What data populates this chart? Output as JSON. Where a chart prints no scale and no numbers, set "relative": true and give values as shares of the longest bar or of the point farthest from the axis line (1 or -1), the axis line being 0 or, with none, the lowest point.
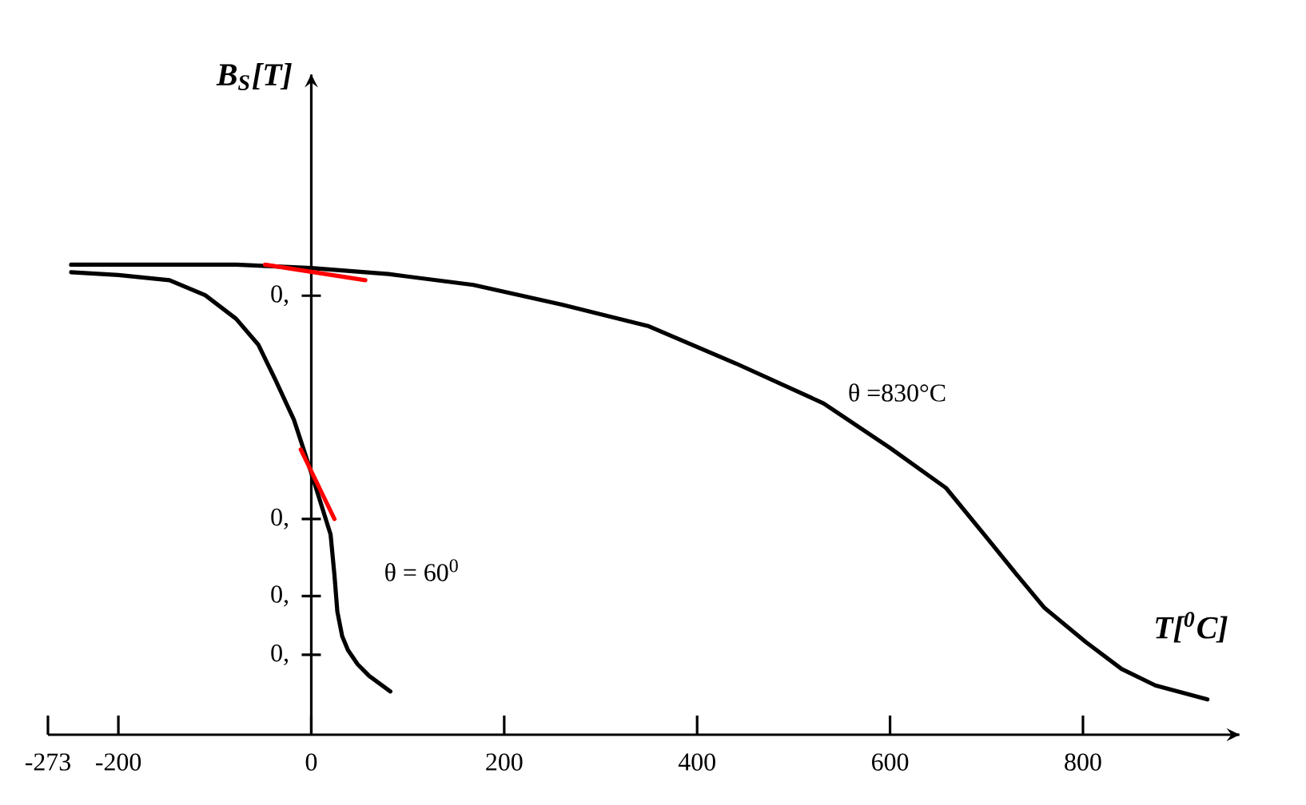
{
  "chart_data": {
    "type": "line",
    "relative": true,
    "xlabel": "T[$^{0}$C]",
    "xlim": [
      -273,
      960
    ],
    "xticks": [
      -273,
      -200,
      0,
      200,
      400,
      600,
      800
    ],
    "series": [
      {
        "color": "#000000",
        "x": [
          -249,
          -160,
          -78,
          0,
          80,
          168,
          260,
          350,
          440,
          531,
          600,
          658,
          700,
          730,
          760,
          803,
          840,
          875,
          929
        ],
        "values": [
          1.0,
          1.0,
          1.0,
          0.993,
          0.98,
          0.957,
          0.915,
          0.869,
          0.79,
          0.705,
          0.61,
          0.525,
          0.42,
          0.344,
          0.27,
          0.197,
          0.14,
          0.105,
          0.075
        ]
      },
      {
        "color": "#000000",
        "x": [
          -249,
          -200,
          -147,
          -110,
          -78,
          -55,
          -37,
          -18,
          0,
          20,
          24,
          27,
          32,
          38,
          48,
          60,
          82
        ],
        "values": [
          0.984,
          0.978,
          0.967,
          0.935,
          0.885,
          0.83,
          0.754,
          0.67,
          0.557,
          0.426,
          0.34,
          0.262,
          0.21,
          0.18,
          0.15,
          0.125,
          0.092
        ]
      },
      {
        "color": "#ff0000",
        "x": [
          -48,
          56
        ],
        "values": [
          1.0,
          0.967
        ]
      },
      {
        "color": "#ff0000",
        "x": [
          -11,
          24
        ],
        "values": [
          0.607,
          0.459
        ]
      }
    ],
    "annotations": [
      "θ =830°C",
      "θ = 60$^{0}$",
      "B$_{S}$[T]",
      "0,",
      "0,",
      "0,",
      "0,"
    ]
  }
}
